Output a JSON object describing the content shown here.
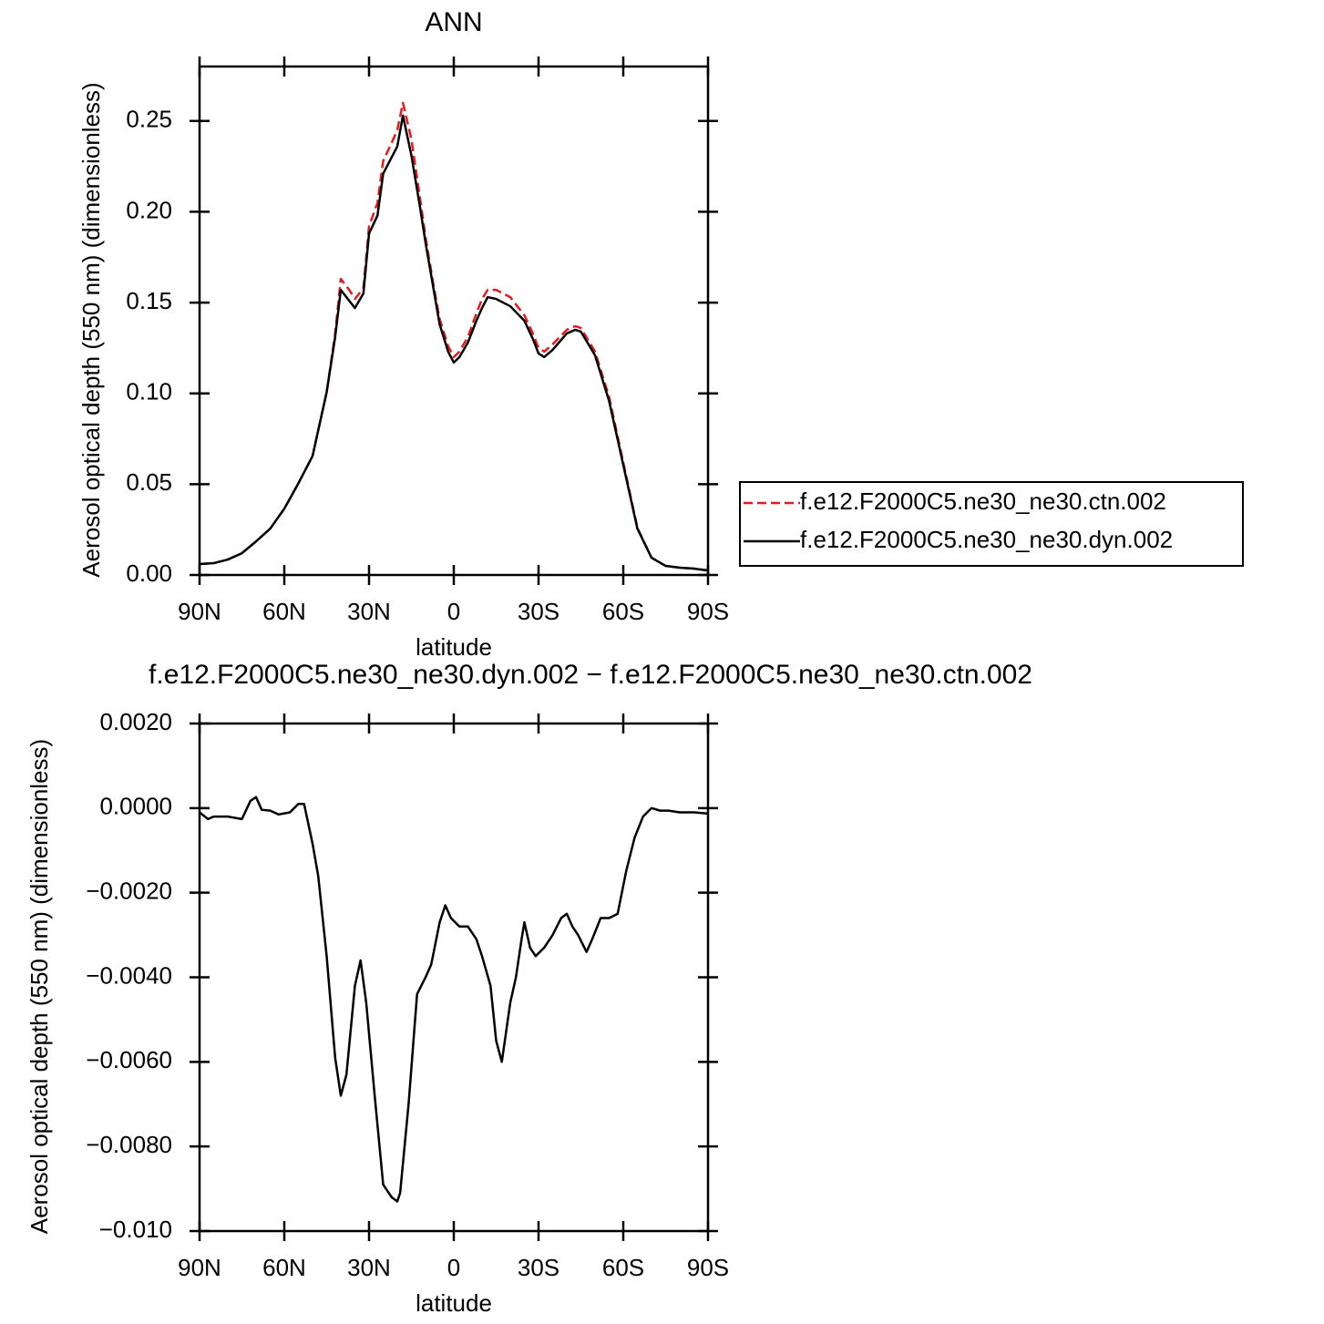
{
  "chart_data": [
    {
      "type": "line",
      "title": "ANN",
      "x_label": "latitude",
      "y_label": "Aerosol optical depth (550 nm) (dimensionless)",
      "legend": "right",
      "xlim": [
        90,
        -90
      ],
      "xticks": [
        {
          "value": 90,
          "label": "90N"
        },
        {
          "value": 60,
          "label": "60N"
        },
        {
          "value": 30,
          "label": "30N"
        },
        0,
        {
          "value": -30,
          "label": "30S"
        },
        {
          "value": -60,
          "label": "60S"
        },
        {
          "value": -90,
          "label": "90S"
        }
      ],
      "ylim": [
        0,
        0.28
      ],
      "yticks": [
        {
          "value": 0,
          "label": "0.00"
        },
        0.05,
        {
          "value": 0.1,
          "label": "0.10"
        },
        0.15,
        {
          "value": 0.2,
          "label": "0.20"
        },
        0.25
      ],
      "x": [
        90,
        85,
        80,
        75,
        70,
        65,
        60,
        55,
        50,
        45,
        42,
        40,
        37,
        35,
        32,
        30,
        27,
        25,
        22,
        20,
        18,
        15,
        12,
        10,
        7,
        5,
        2,
        0,
        -2,
        -5,
        -8,
        -10,
        -12,
        -15,
        -20,
        -25,
        -28,
        -30,
        -32,
        -35,
        -40,
        -43,
        -45,
        -50,
        -55,
        -60,
        -65,
        -70,
        -75,
        -80,
        -85,
        -90
      ],
      "series": [
        {
          "name": "f.e12.F2000C5.ne30_ne30.ctn.002",
          "color": "#e41a1c",
          "line_style": "dashed",
          "values": [
            0.006,
            0.0065,
            0.0085,
            0.012,
            0.0185,
            0.0255,
            0.0365,
            0.0505,
            0.0655,
            0.1007,
            0.133,
            0.163,
            0.157,
            0.152,
            0.158,
            0.192,
            0.205,
            0.228,
            0.238,
            0.245,
            0.26,
            0.24,
            0.208,
            0.186,
            0.158,
            0.141,
            0.126,
            0.12,
            0.123,
            0.131,
            0.144,
            0.152,
            0.157,
            0.157,
            0.153,
            0.143,
            0.133,
            0.125,
            0.123,
            0.127,
            0.135,
            0.137,
            0.136,
            0.123,
            0.098,
            0.062,
            0.026,
            0.0095,
            0.005,
            0.004,
            0.0035,
            0.0025
          ]
        },
        {
          "name": "f.e12.F2000C5.ne30_ne30.dyn.002",
          "color": "#000000",
          "line_style": "solid",
          "values": [
            0.006,
            0.0065,
            0.0085,
            0.012,
            0.0185,
            0.0255,
            0.0365,
            0.0505,
            0.0655,
            0.1007,
            0.131,
            0.157,
            0.151,
            0.147,
            0.155,
            0.188,
            0.198,
            0.221,
            0.23,
            0.236,
            0.253,
            0.231,
            0.203,
            0.183,
            0.156,
            0.138,
            0.123,
            0.117,
            0.12,
            0.128,
            0.14,
            0.147,
            0.153,
            0.152,
            0.148,
            0.14,
            0.13,
            0.122,
            0.12,
            0.124,
            0.133,
            0.135,
            0.134,
            0.121,
            0.0957,
            0.0606,
            0.0255,
            0.0095,
            0.005,
            0.004,
            0.0035,
            0.0025
          ]
        }
      ]
    },
    {
      "type": "line",
      "title": "f.e12.F2000C5.ne30_ne30.dyn.002 − f.e12.F2000C5.ne30_ne30.ctn.002",
      "x_label": "latitude",
      "y_label": "Aerosol optical depth (550 nm) (dimensionless)",
      "xlim": [
        90,
        -90
      ],
      "xticks": [
        {
          "value": 90,
          "label": "90N"
        },
        {
          "value": 60,
          "label": "60N"
        },
        {
          "value": 30,
          "label": "30N"
        },
        0,
        {
          "value": -30,
          "label": "30S"
        },
        {
          "value": -60,
          "label": "60S"
        },
        {
          "value": -90,
          "label": "90S"
        }
      ],
      "ylim": [
        -0.01,
        0.002
      ],
      "yticks": [
        {
          "value": -0.01,
          "label": "−0.010"
        },
        {
          "value": -0.008,
          "label": "−0.0080"
        },
        {
          "value": -0.006,
          "label": "−0.0060"
        },
        {
          "value": -0.004,
          "label": "−0.0040"
        },
        {
          "value": -0.002,
          "label": "−0.0020"
        },
        {
          "value": 0,
          "label": "0.0000"
        },
        {
          "value": 0.002,
          "label": "0.0020"
        }
      ],
      "color": "#000000",
      "x": [
        90,
        87,
        85,
        80,
        75,
        72,
        70,
        68,
        65,
        62,
        58,
        55,
        53,
        50,
        48,
        45,
        42,
        40,
        38,
        35,
        33,
        31,
        28,
        25,
        22,
        20,
        19,
        16,
        13,
        10,
        8,
        5,
        3,
        1,
        -2,
        -5,
        -8,
        -10,
        -13,
        -15,
        -17,
        -20,
        -22,
        -24,
        -25,
        -27,
        -29,
        -32,
        -35,
        -38,
        -40,
        -42,
        -44,
        -47,
        -49,
        -52,
        -55,
        -58,
        -61,
        -64,
        -67,
        -70,
        -73,
        -76,
        -80,
        -85,
        -90
      ],
      "values": [
        -0.0001,
        -0.00026,
        -0.0002,
        -0.0002,
        -0.00026,
        0.00017,
        0.00026,
        -4e-05,
        -6e-05,
        -0.00015,
        -0.0001,
        0.0001,
        0.0001,
        -0.00084,
        -0.0016,
        -0.0035,
        -0.0059,
        -0.0068,
        -0.0063,
        -0.0042,
        -0.0036,
        -0.0046,
        -0.0068,
        -0.0089,
        -0.0092,
        -0.0093,
        -0.0091,
        -0.007,
        -0.0044,
        -0.004,
        -0.0037,
        -0.0027,
        -0.0023,
        -0.0026,
        -0.0028,
        -0.0028,
        -0.0031,
        -0.0035,
        -0.0042,
        -0.0055,
        -0.006,
        -0.0046,
        -0.004,
        -0.0031,
        -0.0027,
        -0.0033,
        -0.0035,
        -0.0033,
        -0.003,
        -0.0026,
        -0.0025,
        -0.0028,
        -0.003,
        -0.0034,
        -0.0031,
        -0.0026,
        -0.0026,
        -0.0025,
        -0.0015,
        -0.0007,
        -0.0002,
        0,
        -6e-05,
        -6e-05,
        -0.0001,
        -0.0001,
        -0.00013
      ]
    }
  ]
}
